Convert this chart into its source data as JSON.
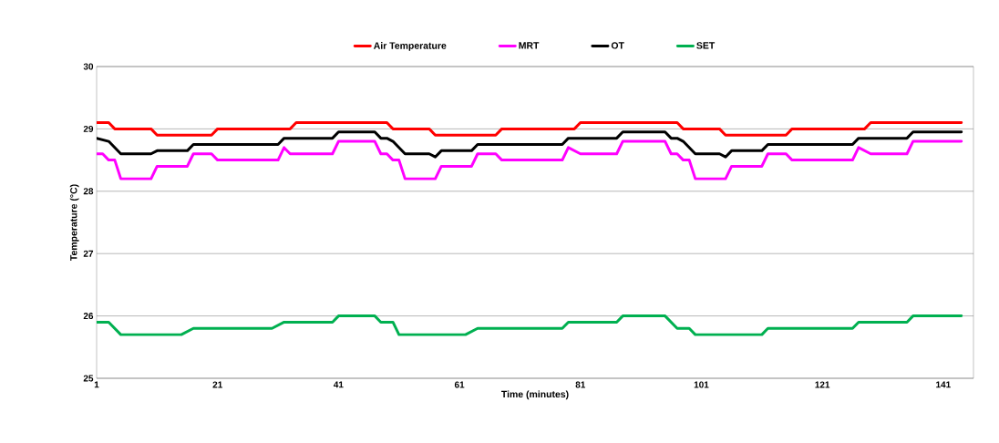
{
  "chart_data": {
    "type": "line",
    "xlabel": "Time (minutes)",
    "ylabel": "Temperature (°C)",
    "xlim": [
      1,
      146
    ],
    "xticks": [
      1,
      21,
      41,
      61,
      81,
      101,
      121,
      141
    ],
    "ylim": [
      25,
      30
    ],
    "yticks": [
      25,
      26,
      27,
      28,
      29,
      30
    ],
    "grid": "y",
    "legend": "top",
    "marker": "none",
    "line_style": "solid",
    "series": [
      {
        "name": "Air Temperature",
        "color": "#ff0000",
        "x": [
          1,
          3,
          4,
          10,
          11,
          20,
          21,
          33,
          34,
          49,
          50,
          56,
          57,
          67,
          68,
          80,
          81,
          97,
          98,
          104,
          105,
          115,
          116,
          128,
          129,
          144
        ],
        "values": [
          29.1,
          29.1,
          29.0,
          29.0,
          28.9,
          28.9,
          29.0,
          29.0,
          29.1,
          29.1,
          29.0,
          29.0,
          28.9,
          28.9,
          29.0,
          29.0,
          29.1,
          29.1,
          29.0,
          29.0,
          28.9,
          28.9,
          29.0,
          29.0,
          29.1,
          29.1
        ]
      },
      {
        "name": "MRT",
        "color": "#ff00ff",
        "x": [
          1,
          2,
          3,
          4,
          5,
          10,
          11,
          16,
          17,
          20,
          21,
          31,
          32,
          33,
          40,
          41,
          47,
          48,
          49,
          50,
          51,
          52,
          57,
          58,
          63,
          64,
          67,
          68,
          78,
          79,
          81,
          87,
          88,
          95,
          96,
          97,
          98,
          99,
          100,
          105,
          106,
          111,
          112,
          115,
          116,
          126,
          127,
          129,
          135,
          136,
          144
        ],
        "values": [
          28.6,
          28.6,
          28.5,
          28.5,
          28.2,
          28.2,
          28.4,
          28.4,
          28.6,
          28.6,
          28.5,
          28.5,
          28.7,
          28.6,
          28.6,
          28.8,
          28.8,
          28.6,
          28.6,
          28.5,
          28.5,
          28.2,
          28.2,
          28.4,
          28.4,
          28.6,
          28.6,
          28.5,
          28.5,
          28.7,
          28.6,
          28.6,
          28.8,
          28.8,
          28.6,
          28.6,
          28.5,
          28.5,
          28.2,
          28.2,
          28.4,
          28.4,
          28.6,
          28.6,
          28.5,
          28.5,
          28.7,
          28.6,
          28.6,
          28.8,
          28.8
        ]
      },
      {
        "name": "OT",
        "color": "#000000",
        "x": [
          1,
          3,
          5,
          10,
          11,
          16,
          17,
          31,
          32,
          40,
          41,
          47,
          48,
          49,
          50,
          52,
          56,
          57,
          58,
          63,
          64,
          78,
          79,
          87,
          88,
          95,
          96,
          97,
          98,
          100,
          104,
          105,
          106,
          111,
          112,
          126,
          127,
          135,
          136,
          144
        ],
        "values": [
          28.85,
          28.8,
          28.6,
          28.6,
          28.65,
          28.65,
          28.75,
          28.75,
          28.85,
          28.85,
          28.95,
          28.95,
          28.85,
          28.85,
          28.8,
          28.6,
          28.6,
          28.55,
          28.65,
          28.65,
          28.75,
          28.75,
          28.85,
          28.85,
          28.95,
          28.95,
          28.85,
          28.85,
          28.8,
          28.6,
          28.6,
          28.55,
          28.65,
          28.65,
          28.75,
          28.75,
          28.85,
          28.85,
          28.95,
          28.95
        ]
      },
      {
        "name": "SET",
        "color": "#00b050",
        "x": [
          1,
          3,
          5,
          15,
          17,
          30,
          32,
          40,
          41,
          47,
          48,
          50,
          51,
          62,
          64,
          78,
          79,
          87,
          88,
          95,
          97,
          99,
          100,
          111,
          112,
          126,
          127,
          135,
          136,
          144
        ],
        "values": [
          25.9,
          25.9,
          25.7,
          25.7,
          25.8,
          25.8,
          25.9,
          25.9,
          26.0,
          26.0,
          25.9,
          25.9,
          25.7,
          25.7,
          25.8,
          25.8,
          25.9,
          25.9,
          26.0,
          26.0,
          25.8,
          25.8,
          25.7,
          25.7,
          25.8,
          25.8,
          25.9,
          25.9,
          26.0,
          26.0
        ]
      }
    ]
  }
}
